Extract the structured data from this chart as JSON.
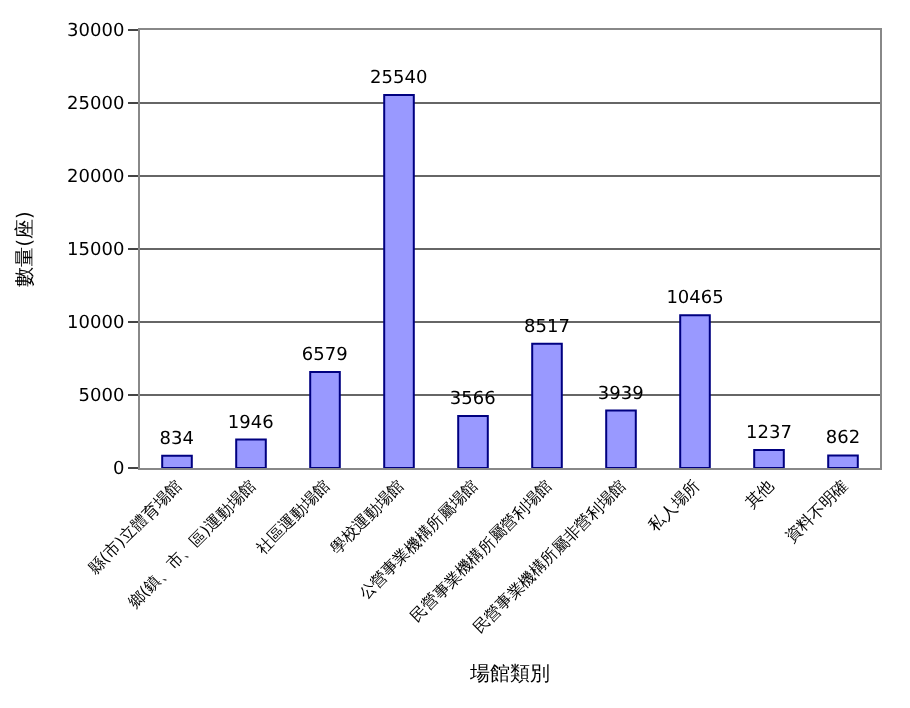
{
  "chart_data": {
    "type": "bar",
    "xlabel": "場館類別",
    "ylabel": "數量(座)",
    "categories": [
      "縣(市)立體育場館",
      "鄉(鎮、市、區)運動場館",
      "社區運動場館",
      "學校運動場館",
      "公營事業機構所屬場館",
      "民營事業機構所屬營利場館",
      "民營事業機構所屬非營利場館",
      "私人場所",
      "其他",
      "資料不明確"
    ],
    "values": [
      834,
      1946,
      6579,
      25540,
      3566,
      8517,
      3939,
      10465,
      1237,
      862
    ],
    "color": "#9999ff",
    "ylim": [
      0,
      30000
    ],
    "yticks": [
      0,
      5000,
      10000,
      15000,
      20000,
      25000,
      30000
    ],
    "grid": "y",
    "data_labels": true,
    "legend": false
  }
}
